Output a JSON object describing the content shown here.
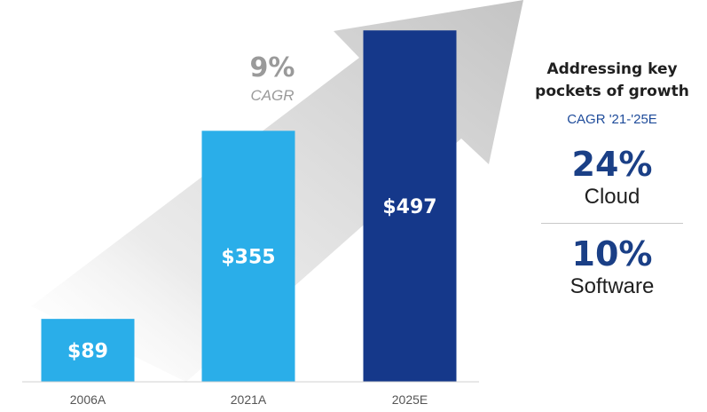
{
  "chart_data": {
    "type": "bar",
    "categories": [
      "2006A",
      "2021A",
      "2025E"
    ],
    "values": [
      89,
      355,
      497
    ],
    "value_labels": [
      "$89",
      "$355",
      "$497"
    ],
    "ylim": [
      0,
      540
    ],
    "grid": false,
    "annotation": {
      "value": "9%",
      "label": "CAGR"
    },
    "colors": {
      "bars": [
        "#2aaee9",
        "#2aaee9",
        "#15388a"
      ],
      "arrow": "#cfcfcf",
      "annotation": "#9a9a9a"
    }
  },
  "side_panel": {
    "title_line1": "Addressing key",
    "title_line2": "pockets of growth",
    "subtitle": "CAGR '21-'25E",
    "stats": [
      {
        "value": "24%",
        "label": "Cloud"
      },
      {
        "value": "10%",
        "label": "Software"
      }
    ],
    "colors": {
      "stat_value": "#1a3f86",
      "subtitle": "#1e4b9a"
    }
  }
}
